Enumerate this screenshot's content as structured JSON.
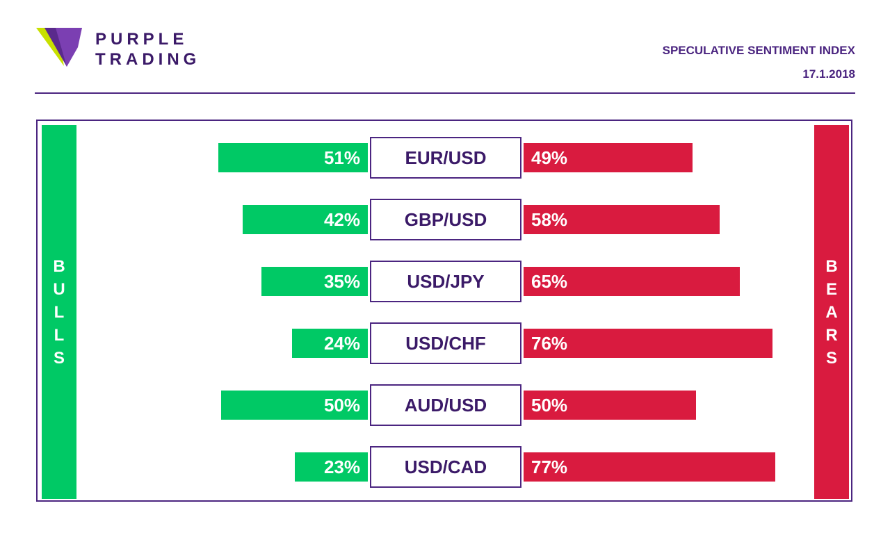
{
  "brand": {
    "line1": "PURPLE",
    "line2": "TRADING"
  },
  "header": {
    "title": "SPECULATIVE SENTIMENT INDEX",
    "date": "17.1.2018"
  },
  "labels": {
    "bulls": "BULLS",
    "bears": "BEARS"
  },
  "colors": {
    "bulls": "#00c965",
    "bears": "#d91b3f",
    "brand": "#4b2580"
  },
  "chart_data": {
    "type": "bar",
    "orientation": "horizontal-diverging",
    "categories": [
      "EUR/USD",
      "GBP/USD",
      "USD/JPY",
      "USD/CHF",
      "AUD/USD",
      "USD/CAD"
    ],
    "series": [
      {
        "name": "BULLS",
        "values": [
          51,
          42,
          35,
          24,
          50,
          23
        ],
        "labels": [
          "51%",
          "42%",
          "35%",
          "24%",
          "50%",
          "23%"
        ]
      },
      {
        "name": "BEARS",
        "values": [
          49,
          58,
          65,
          76,
          50,
          77
        ],
        "labels": [
          "49%",
          "58%",
          "65%",
          "76%",
          "50%",
          "77%"
        ]
      }
    ],
    "unit": "%",
    "grid": false
  }
}
